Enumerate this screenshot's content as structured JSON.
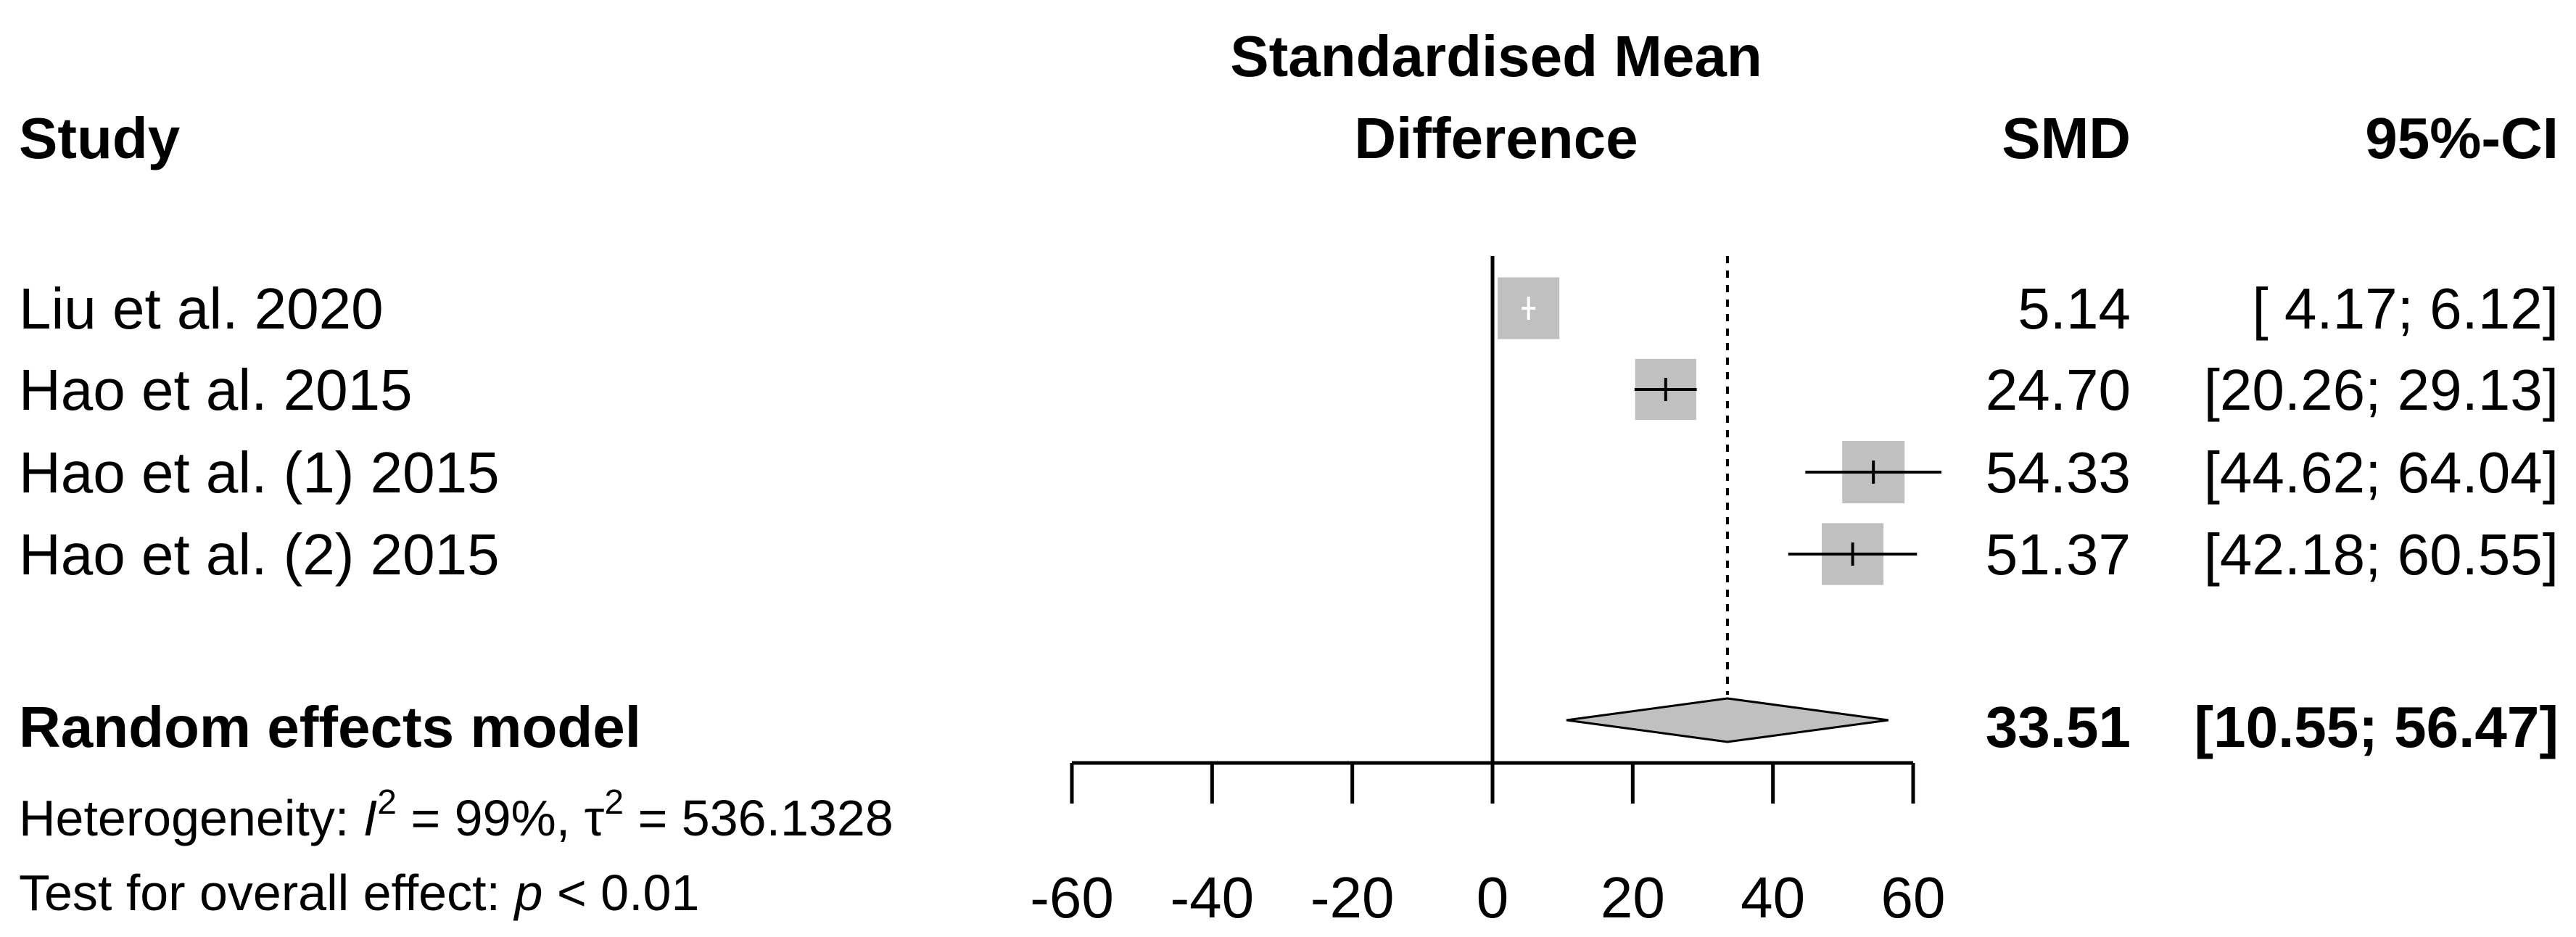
{
  "chart_data": {
    "type": "forest",
    "header": {
      "study": "Study",
      "plot_title_line1": "Standardised Mean",
      "plot_title_line2": "Difference",
      "smd": "SMD",
      "ci": "95%-CI"
    },
    "studies": [
      {
        "name": "Liu et al. 2020",
        "smd": 5.14,
        "lower": 4.17,
        "upper": 6.12,
        "smd_text": "5.14",
        "ci_text": "[ 4.17;  6.12]",
        "weight": 0.99
      },
      {
        "name": "Hao et al. 2015",
        "smd": 24.7,
        "lower": 20.26,
        "upper": 29.13,
        "smd_text": "24.70",
        "ci_text": "[20.26; 29.13]",
        "weight": 0.98
      },
      {
        "name": "Hao et al. (1) 2015",
        "smd": 54.33,
        "lower": 44.62,
        "upper": 64.04,
        "smd_text": "54.33",
        "ci_text": "[44.62; 64.04]",
        "weight": 1.0
      },
      {
        "name": "Hao et al. (2) 2015",
        "smd": 51.37,
        "lower": 42.18,
        "upper": 60.55,
        "smd_text": "51.37",
        "ci_text": "[42.18; 60.55]",
        "weight": 0.99
      }
    ],
    "summary": {
      "name": "Random effects model",
      "smd": 33.51,
      "lower": 10.55,
      "upper": 56.47,
      "smd_text": "33.51",
      "ci_text": "[10.55; 56.47]"
    },
    "heterogeneity": {
      "prefix": "Heterogeneity: ",
      "i2_symbol": "I",
      "i2_value": " = 99%, ",
      "tau_symbol": "τ",
      "tau_value": " = 536.1328",
      "sup": "2"
    },
    "overall_test": {
      "prefix": "Test for overall effect:  ",
      "p_symbol": "p",
      "p_value": " < 0.01"
    },
    "x_axis": {
      "ticks": [
        -60,
        -40,
        -20,
        0,
        20,
        40,
        60
      ],
      "tick_labels": [
        "-60",
        "-40",
        "-20",
        "0",
        "20",
        "40",
        "60"
      ],
      "range": [
        -60,
        60
      ]
    },
    "null_line": 0,
    "summary_line": 33.51,
    "colors": {
      "square": "#c0c0c0",
      "diamond": "#c0c0c0",
      "line": "#000000"
    }
  }
}
